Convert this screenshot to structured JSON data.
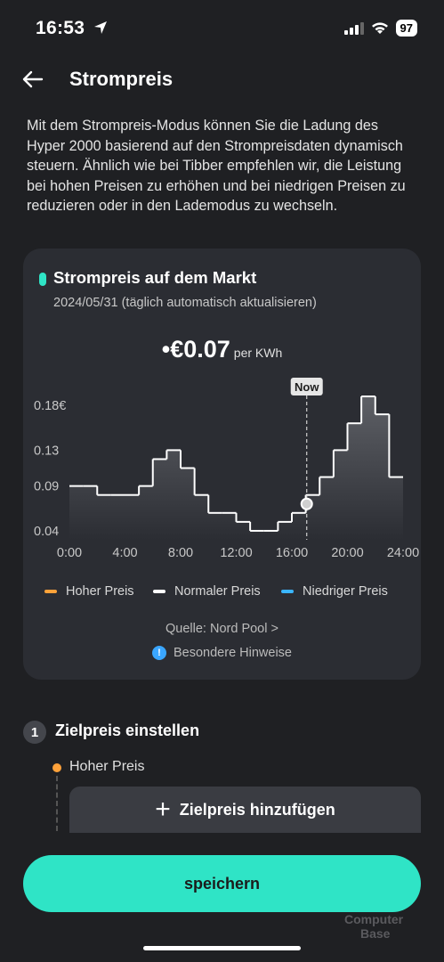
{
  "status_bar": {
    "time": "16:53",
    "battery": "97"
  },
  "header": {
    "title": "Strompreis"
  },
  "description": "Mit dem Strompreis-Modus können Sie die Ladung des Hyper 2000 basierend auf den Strompreisdaten dynamisch steuern. Ähnlich wie bei Tibber empfehlen wir, die Leistung bei hohen Preisen zu erhöhen und bei niedrigen Preisen zu reduzieren oder in den Lademodus zu wechseln.",
  "card": {
    "title": "Strompreis auf dem Markt",
    "date": "2024/05/31 (täglich automatisch aktualisieren)",
    "price_value": "€0.07",
    "price_unit": "per KWh",
    "legend": [
      {
        "label": "Hoher Preis",
        "color": "#ffa23a"
      },
      {
        "label": "Normaler Preis",
        "color": "#ffffff"
      },
      {
        "label": "Niedriger Preis",
        "color": "#3ab5ff"
      }
    ],
    "source": "Quelle: Nord Pool >",
    "notes": "Besondere Hinweise"
  },
  "chart_data": {
    "type": "area",
    "step": true,
    "x": [
      0,
      1,
      2,
      3,
      4,
      5,
      6,
      7,
      8,
      9,
      10,
      11,
      12,
      13,
      14,
      15,
      16,
      17,
      18,
      19,
      20,
      21,
      22,
      23
    ],
    "values": [
      0.09,
      0.09,
      0.08,
      0.08,
      0.08,
      0.09,
      0.12,
      0.13,
      0.11,
      0.08,
      0.06,
      0.06,
      0.05,
      0.04,
      0.04,
      0.05,
      0.06,
      0.08,
      0.1,
      0.13,
      0.16,
      0.19,
      0.17,
      0.1
    ],
    "x_ticks": [
      "0:00",
      "4:00",
      "8:00",
      "12:00",
      "16:00",
      "20:00",
      "24:00"
    ],
    "y_ticks": [
      "0.18€",
      "0.13",
      "0.09",
      "0.04"
    ],
    "y_tick_values": [
      0.18,
      0.13,
      0.09,
      0.04
    ],
    "xlim": [
      0,
      24
    ],
    "ylim": [
      0.03,
      0.195
    ],
    "now_label": "Now",
    "now_x": 17,
    "now_value": 0.07,
    "colors": {
      "fill_top": "#5e6066",
      "fill_bottom": "#2b2d33",
      "line": "#ffffff",
      "axis_text": "#c8c8c8"
    }
  },
  "step1": {
    "number": "1",
    "title": "Zielpreis einstellen",
    "hoher_preis": "Hoher Preis",
    "add_label": "Zielpreis hinzufügen"
  },
  "save_button": "speichern",
  "watermark": {
    "line1": "Computer",
    "line2": "Base"
  },
  "colors": {
    "accent": "#2fe4c6",
    "background": "#1f2023",
    "card": "#2b2d33"
  }
}
